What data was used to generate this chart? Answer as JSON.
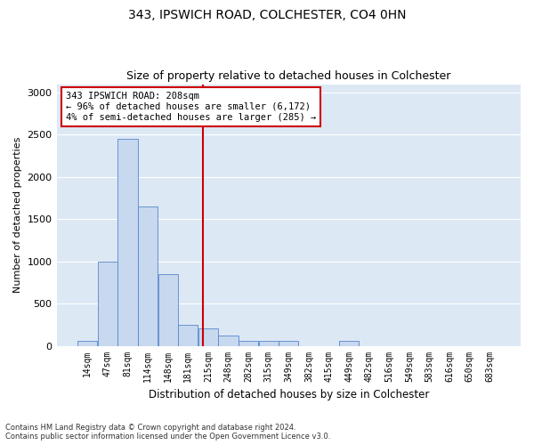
{
  "title1": "343, IPSWICH ROAD, COLCHESTER, CO4 0HN",
  "title2": "Size of property relative to detached houses in Colchester",
  "xlabel": "Distribution of detached houses by size in Colchester",
  "ylabel": "Number of detached properties",
  "categories": [
    "14sqm",
    "47sqm",
    "81sqm",
    "114sqm",
    "148sqm",
    "181sqm",
    "215sqm",
    "248sqm",
    "282sqm",
    "315sqm",
    "349sqm",
    "382sqm",
    "415sqm",
    "449sqm",
    "482sqm",
    "516sqm",
    "549sqm",
    "583sqm",
    "616sqm",
    "650sqm",
    "683sqm"
  ],
  "values": [
    55,
    1000,
    2450,
    1650,
    850,
    250,
    210,
    125,
    55,
    55,
    55,
    0,
    0,
    55,
    0,
    0,
    0,
    0,
    0,
    0,
    0
  ],
  "bar_color": "#c8d8ee",
  "bar_edge_color": "#5588cc",
  "background_color": "#dde8f5",
  "grid_color": "#ffffff",
  "vline_x_index": 5.75,
  "vline_color": "#cc0000",
  "annotation_text": "343 IPSWICH ROAD: 208sqm\n← 96% of detached houses are smaller (6,172)\n4% of semi-detached houses are larger (285) →",
  "annotation_box_color": "#ffffff",
  "annotation_box_edge": "#cc0000",
  "ylim": [
    0,
    3100
  ],
  "yticks": [
    0,
    500,
    1000,
    1500,
    2000,
    2500,
    3000
  ],
  "footnote1": "Contains HM Land Registry data © Crown copyright and database right 2024.",
  "footnote2": "Contains public sector information licensed under the Open Government Licence v3.0."
}
